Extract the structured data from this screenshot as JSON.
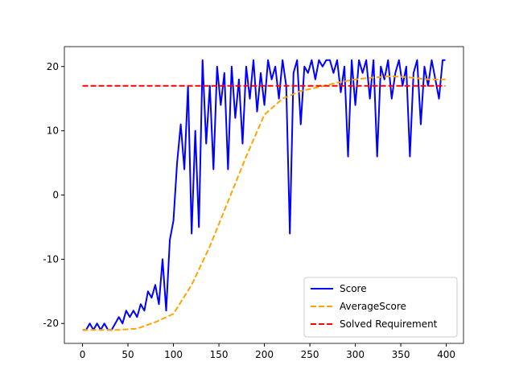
{
  "chart_data": {
    "type": "line",
    "xlim": [
      -19.95,
      418.95
    ],
    "xticks": [
      0,
      50,
      100,
      150,
      200,
      250,
      300,
      350,
      400
    ],
    "ylim": [
      -23.1,
      23.1
    ],
    "yticks": [
      -20,
      -10,
      0,
      10,
      20
    ],
    "legend": "lower right",
    "series": [
      {
        "name": "Score",
        "color": "#0000ff",
        "style": "solid",
        "x": [
          0,
          4,
          8,
          12,
          16,
          20,
          24,
          28,
          32,
          36,
          40,
          44,
          48,
          52,
          56,
          60,
          64,
          68,
          72,
          76,
          80,
          84,
          88,
          92,
          96,
          100,
          104,
          108,
          112,
          116,
          120,
          124,
          128,
          132,
          136,
          140,
          144,
          148,
          152,
          156,
          160,
          164,
          168,
          172,
          176,
          180,
          184,
          188,
          192,
          196,
          200,
          204,
          208,
          212,
          216,
          220,
          224,
          228,
          232,
          236,
          240,
          244,
          248,
          252,
          256,
          260,
          264,
          268,
          272,
          276,
          280,
          284,
          288,
          292,
          296,
          300,
          304,
          308,
          312,
          316,
          320,
          324,
          328,
          332,
          336,
          340,
          344,
          348,
          352,
          356,
          360,
          364,
          368,
          372,
          376,
          380,
          384,
          388,
          392,
          396,
          399
        ],
        "values": [
          -21,
          -21,
          -20,
          -21,
          -20,
          -21,
          -20,
          -21,
          -21,
          -20,
          -19,
          -20,
          -18,
          -19,
          -18,
          -19,
          -17,
          -18,
          -15,
          -16,
          -14,
          -17,
          -10,
          -18,
          -7,
          -4,
          5,
          11,
          4,
          17,
          -6,
          10,
          -5,
          21,
          8,
          17,
          4,
          20,
          14,
          19,
          4,
          20,
          12,
          18,
          8,
          20,
          15,
          21,
          13,
          19,
          14,
          21,
          18,
          20,
          15,
          21,
          17,
          -6,
          19,
          21,
          11,
          20,
          19,
          21,
          18,
          21,
          20,
          21,
          21,
          19,
          21,
          16,
          20,
          6,
          21,
          14,
          21,
          19,
          21,
          15,
          21,
          6,
          20,
          18,
          21,
          15,
          19,
          21,
          17,
          20,
          6,
          19,
          21,
          11,
          20,
          17,
          21,
          18,
          15,
          21,
          21
        ]
      },
      {
        "name": "AverageScore",
        "color": "#ffa500",
        "style": "dashed",
        "x": [
          0,
          20,
          40,
          60,
          80,
          100,
          120,
          140,
          160,
          180,
          200,
          220,
          240,
          260,
          280,
          300,
          320,
          340,
          360,
          380,
          399
        ],
        "values": [
          -21,
          -21,
          -21,
          -20.8,
          -19.8,
          -18.5,
          -14,
          -8,
          -1,
          6,
          12.5,
          15,
          16.2,
          16.8,
          17.5,
          18,
          18.3,
          18.5,
          18.3,
          18,
          18
        ]
      },
      {
        "name": "Solved Requirement",
        "color": "#ff0000",
        "style": "dashed",
        "x": [
          0,
          399
        ],
        "values": [
          17,
          17
        ]
      }
    ]
  }
}
